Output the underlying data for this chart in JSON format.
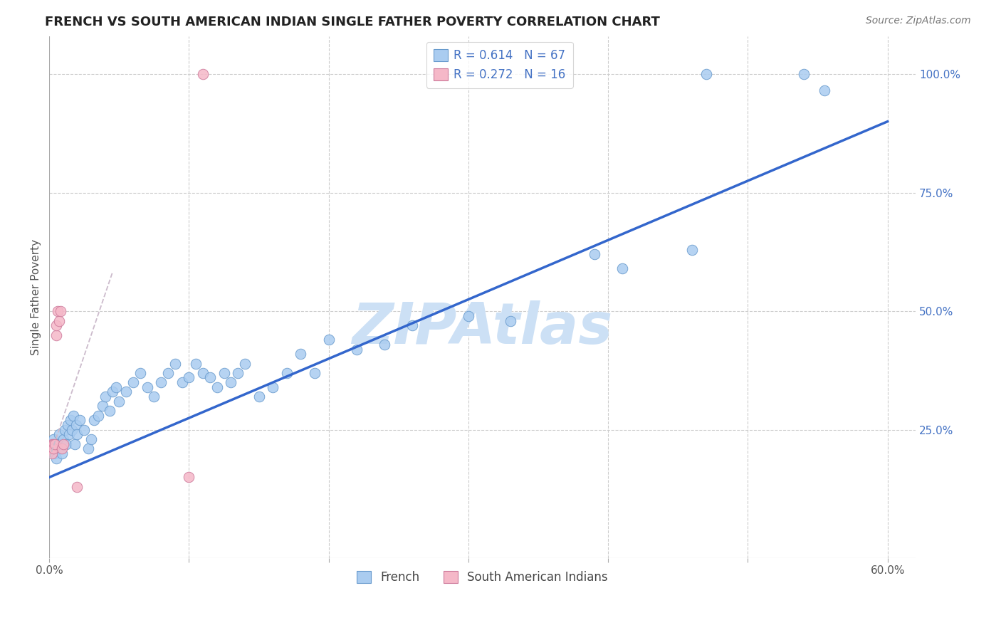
{
  "title": "FRENCH VS SOUTH AMERICAN INDIAN SINGLE FATHER POVERTY CORRELATION CHART",
  "source": "Source: ZipAtlas.com",
  "ylabel": "Single Father Poverty",
  "xlim": [
    0.0,
    0.62
  ],
  "ylim": [
    -0.02,
    1.08
  ],
  "yticks_right": [
    0.25,
    0.5,
    0.75,
    1.0
  ],
  "yticklabels_right": [
    "25.0%",
    "50.0%",
    "75.0%",
    "100.0%"
  ],
  "grid_color": "#cccccc",
  "background_color": "#ffffff",
  "french_color": "#aaccf0",
  "french_edge_color": "#6699cc",
  "french_line_color": "#3366CC",
  "south_american_color": "#f5b8c8",
  "south_american_edge_color": "#cc7799",
  "south_american_line_color": "#cc6688",
  "watermark": "ZIPAtlas",
  "watermark_color": "#cce0f5",
  "R_french": 0.614,
  "N_french": 67,
  "R_south": 0.272,
  "N_south": 16,
  "french_x": [
    0.002,
    0.003,
    0.004,
    0.005,
    0.005,
    0.006,
    0.007,
    0.008,
    0.009,
    0.01,
    0.011,
    0.012,
    0.013,
    0.014,
    0.015,
    0.016,
    0.017,
    0.018,
    0.019,
    0.02,
    0.022,
    0.025,
    0.028,
    0.03,
    0.032,
    0.035,
    0.038,
    0.04,
    0.043,
    0.045,
    0.048,
    0.05,
    0.055,
    0.06,
    0.065,
    0.07,
    0.075,
    0.08,
    0.085,
    0.09,
    0.095,
    0.1,
    0.105,
    0.11,
    0.115,
    0.12,
    0.125,
    0.13,
    0.135,
    0.14,
    0.15,
    0.16,
    0.17,
    0.18,
    0.19,
    0.2,
    0.22,
    0.24,
    0.26,
    0.3,
    0.33,
    0.39,
    0.41,
    0.46,
    0.47,
    0.54,
    0.555
  ],
  "french_y": [
    0.21,
    0.23,
    0.2,
    0.19,
    0.22,
    0.22,
    0.24,
    0.21,
    0.2,
    0.23,
    0.25,
    0.22,
    0.26,
    0.24,
    0.27,
    0.25,
    0.28,
    0.22,
    0.26,
    0.24,
    0.27,
    0.25,
    0.21,
    0.23,
    0.27,
    0.28,
    0.3,
    0.32,
    0.29,
    0.33,
    0.34,
    0.31,
    0.33,
    0.35,
    0.37,
    0.34,
    0.32,
    0.35,
    0.37,
    0.39,
    0.35,
    0.36,
    0.39,
    0.37,
    0.36,
    0.34,
    0.37,
    0.35,
    0.37,
    0.39,
    0.32,
    0.34,
    0.37,
    0.41,
    0.37,
    0.44,
    0.42,
    0.43,
    0.47,
    0.49,
    0.48,
    0.62,
    0.59,
    0.63,
    1.0,
    1.0,
    0.965
  ],
  "south_x": [
    0.001,
    0.002,
    0.002,
    0.003,
    0.003,
    0.004,
    0.005,
    0.005,
    0.006,
    0.007,
    0.008,
    0.009,
    0.01,
    0.02,
    0.1,
    0.11
  ],
  "south_y": [
    0.21,
    0.2,
    0.22,
    0.22,
    0.21,
    0.22,
    0.45,
    0.47,
    0.5,
    0.48,
    0.5,
    0.21,
    0.22,
    0.13,
    0.15,
    1.0
  ],
  "french_trendline_x": [
    0.0,
    0.6
  ],
  "french_trendline_y": [
    0.15,
    0.9
  ],
  "south_trendline_x": [
    0.0,
    0.045
  ],
  "south_trendline_y": [
    0.19,
    0.58
  ]
}
